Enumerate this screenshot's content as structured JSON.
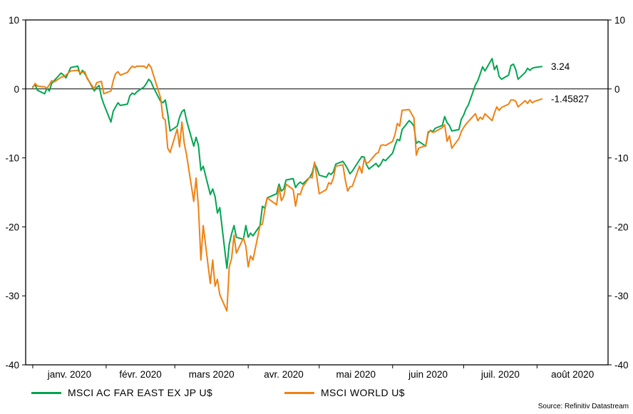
{
  "source_note": "Source: Refinitiv Datastream",
  "chart_data": {
    "type": "line",
    "title": "",
    "grid": false,
    "legend_position": "bottom",
    "x_axis": {
      "unit": "day_of_year_2020",
      "domain": [
        -3,
        243
      ],
      "month_ticks": [
        0,
        31,
        60,
        91,
        121,
        152,
        182,
        213
      ],
      "month_labels": [
        "janv. 2020",
        "févr. 2020",
        "mars 2020",
        "avr. 2020",
        "mai 2020",
        "juin 2020",
        "juil. 2020",
        "août 2020"
      ],
      "month_label_centers": [
        15.5,
        45.5,
        75.5,
        106,
        136.5,
        167,
        197.5,
        228
      ]
    },
    "y_axis": {
      "min": -40,
      "max": 10,
      "ticks": [
        10,
        0,
        -10,
        -20,
        -30,
        -40
      ],
      "tick_labels": [
        "10",
        "0",
        "-10",
        "-20",
        "-30",
        "-40"
      ],
      "zero_line": true,
      "labels_both_sides": true
    },
    "series": [
      {
        "name": "MSCI AC FAR EAST EX JP U$",
        "color": "#00A551",
        "end_label": "3.24",
        "points": [
          [
            0,
            0.3
          ],
          [
            1,
            0.6
          ],
          [
            2,
            -0.2
          ],
          [
            5,
            -0.7
          ],
          [
            6,
            0.1
          ],
          [
            7,
            -0.3
          ],
          [
            8,
            0.8
          ],
          [
            9,
            1.2
          ],
          [
            12,
            2.3
          ],
          [
            13,
            2.0
          ],
          [
            14,
            1.6
          ],
          [
            15,
            2.3
          ],
          [
            16,
            3.1
          ],
          [
            19,
            3.3
          ],
          [
            20,
            2.1
          ],
          [
            21,
            2.7
          ],
          [
            22,
            2.2
          ],
          [
            23,
            1.6
          ],
          [
            26,
            -0.3
          ],
          [
            27,
            0.2
          ],
          [
            28,
            0.5
          ],
          [
            29,
            -1.2
          ],
          [
            30,
            -2.2
          ],
          [
            33,
            -4.8
          ],
          [
            34,
            -3.2
          ],
          [
            35,
            -2.6
          ],
          [
            36,
            -2.0
          ],
          [
            37,
            -2.4
          ],
          [
            40,
            -2.2
          ],
          [
            41,
            -1.0
          ],
          [
            42,
            -0.6
          ],
          [
            43,
            -0.8
          ],
          [
            44,
            -0.4
          ],
          [
            47,
            0.3
          ],
          [
            48,
            0.8
          ],
          [
            49,
            1.4
          ],
          [
            50,
            1.0
          ],
          [
            51,
            0.2
          ],
          [
            54,
            -1.8
          ],
          [
            55,
            -2.0
          ],
          [
            56,
            -1.6
          ],
          [
            57,
            -3.6
          ],
          [
            58,
            -6.1
          ],
          [
            61,
            -5.4
          ],
          [
            62,
            -4.1
          ],
          [
            63,
            -3.3
          ],
          [
            64,
            -3.0
          ],
          [
            65,
            -4.6
          ],
          [
            68,
            -8.3
          ],
          [
            69,
            -7.0
          ],
          [
            70,
            -8.2
          ],
          [
            71,
            -11.8
          ],
          [
            72,
            -11.2
          ],
          [
            75,
            -15.3
          ],
          [
            76,
            -14.5
          ],
          [
            77,
            -15.6
          ],
          [
            78,
            -18.0
          ],
          [
            79,
            -17.2
          ],
          [
            82,
            -26.0
          ],
          [
            83,
            -22.5
          ],
          [
            84,
            -21.0
          ],
          [
            85,
            -19.8
          ],
          [
            86,
            -21.5
          ],
          [
            89,
            -21.8
          ],
          [
            90,
            -19.8
          ],
          [
            91,
            -21.5
          ],
          [
            92,
            -20.9
          ],
          [
            93,
            -21.3
          ],
          [
            96,
            -19.8
          ],
          [
            97,
            -17.0
          ],
          [
            98,
            -17.3
          ],
          [
            99,
            -15.8
          ],
          [
            103,
            -15.2
          ],
          [
            104,
            -13.8
          ],
          [
            105,
            -14.8
          ],
          [
            106,
            -14.5
          ],
          [
            107,
            -13.2
          ],
          [
            110,
            -13.0
          ],
          [
            111,
            -14.3
          ],
          [
            112,
            -13.8
          ],
          [
            113,
            -13.5
          ],
          [
            114,
            -13.8
          ],
          [
            117,
            -12.8
          ],
          [
            118,
            -12.2
          ],
          [
            119,
            -10.8
          ],
          [
            120,
            -11.5
          ],
          [
            121,
            -12.5
          ],
          [
            124,
            -12.8
          ],
          [
            125,
            -12.2
          ],
          [
            126,
            -12.4
          ],
          [
            127,
            -12.0
          ],
          [
            128,
            -10.9
          ],
          [
            131,
            -10.5
          ],
          [
            132,
            -11.0
          ],
          [
            133,
            -11.6
          ],
          [
            134,
            -12.3
          ],
          [
            135,
            -11.9
          ],
          [
            138,
            -10.3
          ],
          [
            139,
            -9.8
          ],
          [
            140,
            -9.9
          ],
          [
            141,
            -11.0
          ],
          [
            142,
            -11.6
          ],
          [
            145,
            -10.8
          ],
          [
            146,
            -11.3
          ],
          [
            147,
            -10.9
          ],
          [
            148,
            -10.2
          ],
          [
            149,
            -10.4
          ],
          [
            152,
            -9.3
          ],
          [
            153,
            -8.2
          ],
          [
            154,
            -7.3
          ],
          [
            155,
            -7.5
          ],
          [
            156,
            -5.9
          ],
          [
            159,
            -4.6
          ],
          [
            160,
            -4.9
          ],
          [
            161,
            -5.4
          ],
          [
            162,
            -7.9
          ],
          [
            163,
            -7.6
          ],
          [
            166,
            -8.3
          ],
          [
            167,
            -6.4
          ],
          [
            168,
            -6.0
          ],
          [
            169,
            -6.2
          ],
          [
            170,
            -5.7
          ],
          [
            173,
            -5.3
          ],
          [
            174,
            -4.0
          ],
          [
            175,
            -4.9
          ],
          [
            176,
            -5.3
          ],
          [
            177,
            -6.1
          ],
          [
            180,
            -5.9
          ],
          [
            181,
            -4.4
          ],
          [
            182,
            -3.8
          ],
          [
            183,
            -2.9
          ],
          [
            184,
            -2.3
          ],
          [
            187,
            0.6
          ],
          [
            188,
            1.2
          ],
          [
            189,
            2.2
          ],
          [
            190,
            3.2
          ],
          [
            191,
            2.6
          ],
          [
            194,
            4.4
          ],
          [
            195,
            2.8
          ],
          [
            196,
            3.4
          ],
          [
            197,
            1.8
          ],
          [
            198,
            1.4
          ],
          [
            201,
            2.0
          ],
          [
            202,
            3.4
          ],
          [
            203,
            3.6
          ],
          [
            204,
            2.8
          ],
          [
            205,
            1.4
          ],
          [
            208,
            2.4
          ],
          [
            209,
            3.0
          ],
          [
            210,
            2.7
          ],
          [
            211,
            3.0
          ],
          [
            212,
            3.1
          ],
          [
            215,
            3.24
          ]
        ]
      },
      {
        "name": "MSCI WORLD U$",
        "color": "#EF8113",
        "end_label": "-1.45827",
        "points": [
          [
            0,
            0.2
          ],
          [
            1,
            0.8
          ],
          [
            2,
            0.4
          ],
          [
            5,
            0.3
          ],
          [
            6,
            0.1
          ],
          [
            7,
            0.6
          ],
          [
            8,
            1.2
          ],
          [
            9,
            1.0
          ],
          [
            12,
            1.7
          ],
          [
            13,
            1.8
          ],
          [
            14,
            2.0
          ],
          [
            15,
            2.3
          ],
          [
            16,
            2.6
          ],
          [
            19,
            2.7
          ],
          [
            20,
            2.3
          ],
          [
            21,
            2.4
          ],
          [
            22,
            2.5
          ],
          [
            23,
            1.5
          ],
          [
            26,
            0.0
          ],
          [
            27,
            0.9
          ],
          [
            28,
            1.0
          ],
          [
            29,
            1.1
          ],
          [
            30,
            -0.7
          ],
          [
            33,
            -0.3
          ],
          [
            34,
            1.2
          ],
          [
            35,
            2.2
          ],
          [
            36,
            2.5
          ],
          [
            37,
            2.0
          ],
          [
            40,
            2.4
          ],
          [
            41,
            2.9
          ],
          [
            42,
            3.3
          ],
          [
            43,
            3.1
          ],
          [
            44,
            3.3
          ],
          [
            47,
            3.3
          ],
          [
            48,
            3.0
          ],
          [
            49,
            3.6
          ],
          [
            50,
            3.1
          ],
          [
            51,
            2.0
          ],
          [
            54,
            -1.3
          ],
          [
            55,
            -4.2
          ],
          [
            56,
            -4.5
          ],
          [
            57,
            -8.6
          ],
          [
            58,
            -9.2
          ],
          [
            61,
            -5.8
          ],
          [
            62,
            -8.4
          ],
          [
            63,
            -4.8
          ],
          [
            64,
            -7.9
          ],
          [
            65,
            -9.6
          ],
          [
            68,
            -16.3
          ],
          [
            69,
            -12.9
          ],
          [
            70,
            -17.2
          ],
          [
            71,
            -24.8
          ],
          [
            72,
            -19.8
          ],
          [
            75,
            -28.2
          ],
          [
            76,
            -24.8
          ],
          [
            77,
            -28.6
          ],
          [
            78,
            -27.6
          ],
          [
            79,
            -29.8
          ],
          [
            82,
            -32.2
          ],
          [
            83,
            -25.8
          ],
          [
            84,
            -24.6
          ],
          [
            85,
            -21.2
          ],
          [
            86,
            -23.8
          ],
          [
            89,
            -21.6
          ],
          [
            90,
            -22.8
          ],
          [
            91,
            -25.8
          ],
          [
            92,
            -24.2
          ],
          [
            93,
            -24.8
          ],
          [
            96,
            -19.8
          ],
          [
            97,
            -19.6
          ],
          [
            98,
            -17.6
          ],
          [
            99,
            -15.8
          ],
          [
            103,
            -16.8
          ],
          [
            104,
            -14.2
          ],
          [
            105,
            -16.2
          ],
          [
            106,
            -15.6
          ],
          [
            107,
            -13.8
          ],
          [
            110,
            -14.6
          ],
          [
            111,
            -17.0
          ],
          [
            112,
            -15.2
          ],
          [
            113,
            -15.3
          ],
          [
            114,
            -14.2
          ],
          [
            117,
            -12.8
          ],
          [
            118,
            -12.9
          ],
          [
            119,
            -10.6
          ],
          [
            120,
            -12.8
          ],
          [
            121,
            -15.2
          ],
          [
            124,
            -14.6
          ],
          [
            125,
            -13.6
          ],
          [
            126,
            -13.8
          ],
          [
            127,
            -12.9
          ],
          [
            128,
            -11.2
          ],
          [
            131,
            -11.0
          ],
          [
            132,
            -13.2
          ],
          [
            133,
            -14.8
          ],
          [
            134,
            -14.2
          ],
          [
            135,
            -14.1
          ],
          [
            138,
            -11.2
          ],
          [
            139,
            -12.2
          ],
          [
            140,
            -10.2
          ],
          [
            141,
            -10.8
          ],
          [
            142,
            -10.6
          ],
          [
            145,
            -9.4
          ],
          [
            146,
            -9.2
          ],
          [
            147,
            -8.2
          ],
          [
            148,
            -8.1
          ],
          [
            149,
            -8.2
          ],
          [
            152,
            -7.6
          ],
          [
            153,
            -6.6
          ],
          [
            154,
            -5.0
          ],
          [
            155,
            -5.4
          ],
          [
            156,
            -3.1
          ],
          [
            159,
            -3.0
          ],
          [
            160,
            -3.6
          ],
          [
            161,
            -4.2
          ],
          [
            162,
            -9.6
          ],
          [
            163,
            -8.6
          ],
          [
            166,
            -8.2
          ],
          [
            167,
            -6.2
          ],
          [
            168,
            -6.1
          ],
          [
            169,
            -6.3
          ],
          [
            170,
            -6.2
          ],
          [
            173,
            -5.6
          ],
          [
            174,
            -5.2
          ],
          [
            175,
            -7.6
          ],
          [
            176,
            -6.8
          ],
          [
            177,
            -8.6
          ],
          [
            180,
            -7.2
          ],
          [
            181,
            -6.2
          ],
          [
            182,
            -5.6
          ],
          [
            183,
            -5.1
          ],
          [
            187,
            -3.6
          ],
          [
            188,
            -4.6
          ],
          [
            189,
            -4.1
          ],
          [
            190,
            -4.4
          ],
          [
            191,
            -3.6
          ],
          [
            194,
            -4.6
          ],
          [
            195,
            -3.5
          ],
          [
            196,
            -2.6
          ],
          [
            197,
            -3.1
          ],
          [
            198,
            -2.7
          ],
          [
            201,
            -2.2
          ],
          [
            202,
            -1.6
          ],
          [
            203,
            -1.6
          ],
          [
            204,
            -1.8
          ],
          [
            205,
            -2.6
          ],
          [
            208,
            -1.7
          ],
          [
            209,
            -2.1
          ],
          [
            210,
            -1.6
          ],
          [
            211,
            -2.0
          ],
          [
            212,
            -1.8
          ],
          [
            215,
            -1.45827
          ]
        ]
      }
    ]
  }
}
